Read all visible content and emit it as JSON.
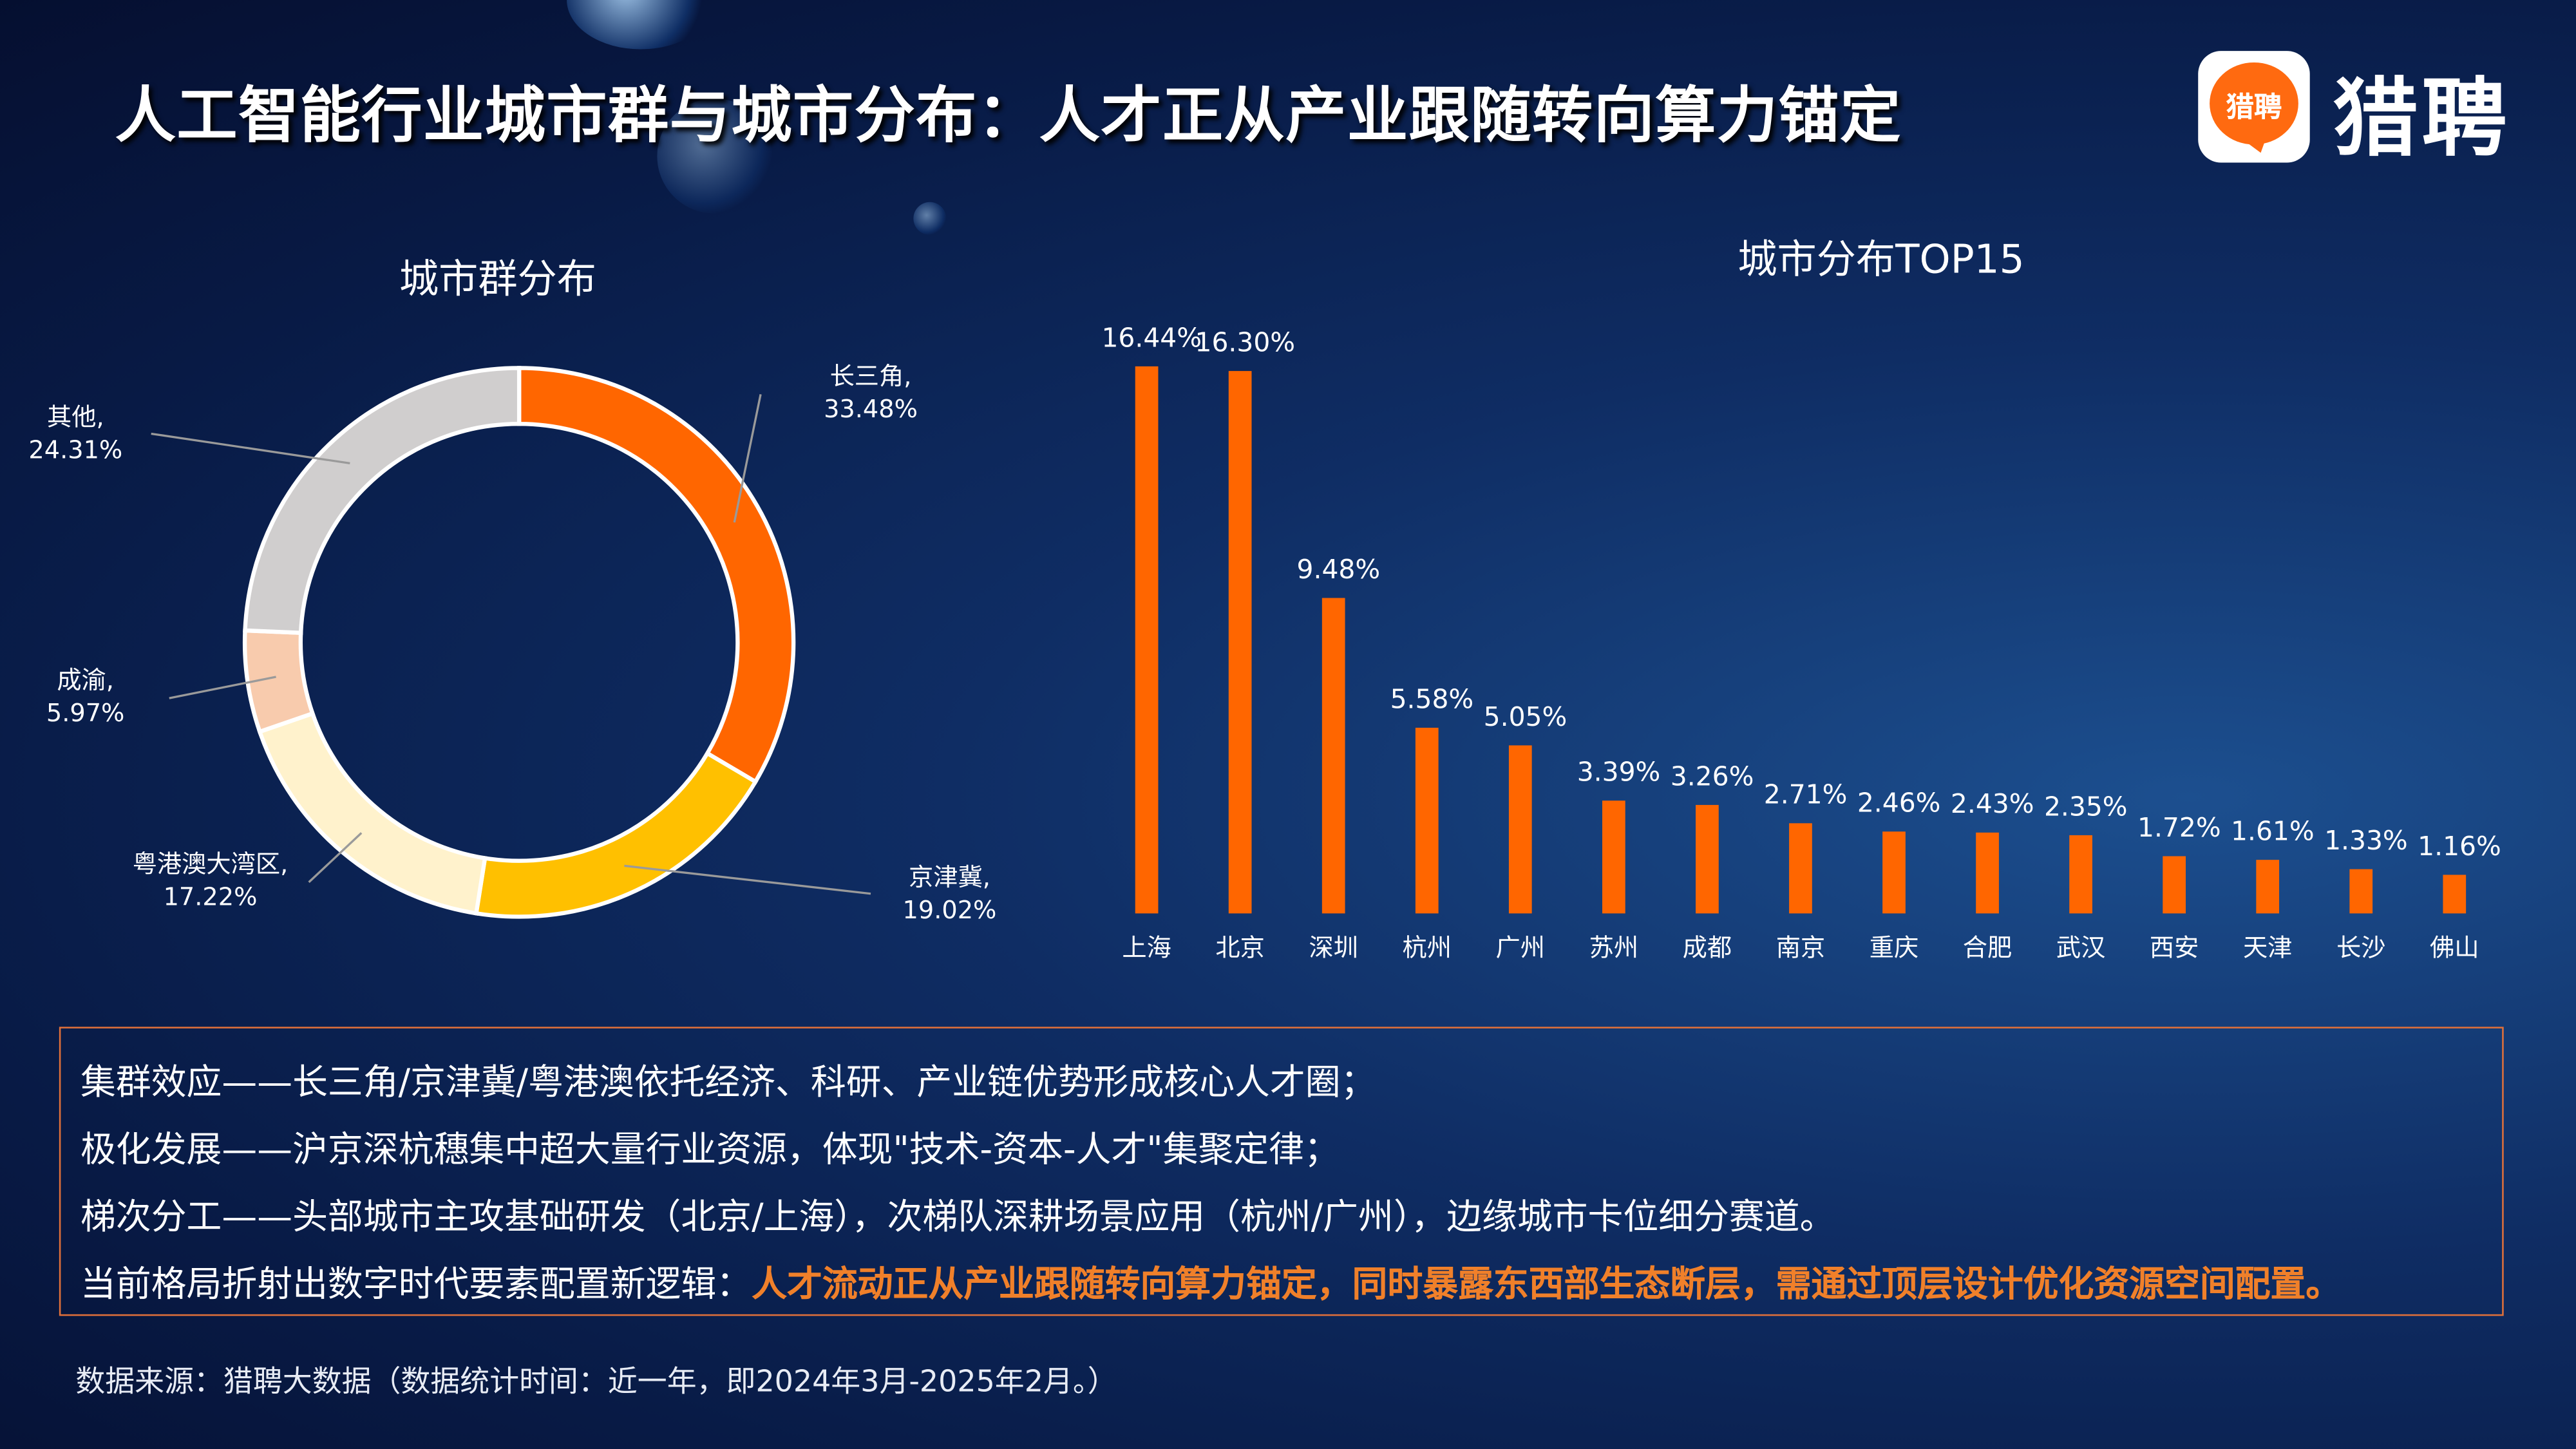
{
  "title": "人工智能行业城市群与城市分布：人才正从产业跟随转向算力锚定",
  "logo": {
    "icon_text": "猎聘",
    "text": "猎聘",
    "color": "#FF6A10"
  },
  "chart_data": [
    {
      "type": "pie",
      "subtype": "donut",
      "title": "城市群分布",
      "categories": [
        "长三角",
        "京津冀",
        "粤港澳大湾区",
        "成渝",
        "其他"
      ],
      "values": [
        33.48,
        19.02,
        17.22,
        5.97,
        24.31
      ],
      "labels": [
        "33.48%",
        "19.02%",
        "17.22%",
        "5.97%",
        "24.31%"
      ],
      "colors": [
        "#FF6600",
        "#FFC000",
        "#FFF2CC",
        "#F8CBAD",
        "#D0CECE"
      ],
      "start": "top",
      "direction": "clockwise"
    },
    {
      "type": "bar",
      "title": "城市分布TOP15",
      "categories": [
        "上海",
        "北京",
        "深圳",
        "杭州",
        "广州",
        "苏州",
        "成都",
        "南京",
        "重庆",
        "合肥",
        "武汉",
        "西安",
        "天津",
        "长沙",
        "佛山"
      ],
      "values": [
        16.44,
        16.3,
        9.48,
        5.58,
        5.05,
        3.39,
        3.26,
        2.71,
        2.46,
        2.43,
        2.35,
        1.72,
        1.61,
        1.33,
        1.16
      ],
      "labels": [
        "16.44%",
        "16.30%",
        "9.48%",
        "5.58%",
        "5.05%",
        "3.39%",
        "3.26%",
        "2.71%",
        "2.46%",
        "2.43%",
        "2.35%",
        "1.72%",
        "1.61%",
        "1.33%",
        "1.16%"
      ],
      "color": "#FF6600",
      "grid": false,
      "ylim": [
        0,
        16.44
      ]
    }
  ],
  "insights": {
    "lines": [
      "集群效应——长三角/京津冀/粤港澳依托经济、科研、产业链优势形成核心人才圈；",
      "极化发展——沪京深杭穗集中超大量行业资源，体现\"技术-资本-人才\"集聚定律；",
      "梯次分工——头部城市主攻基础研发（北京/上海），次梯队深耕场景应用（杭州/广州），边缘城市卡位细分赛道。"
    ],
    "conclusion_prefix": "当前格局折射出数字时代要素配置新逻辑：",
    "conclusion_highlight": "人才流动正从产业跟随转向算力锚定，同时暴露东西部生态断层，需通过顶层设计优化资源空间配置。",
    "highlight_color": "#F0802A"
  },
  "source": "数据来源：猎聘大数据（数据统计时间：近一年，即2024年3月-2025年2月。）"
}
